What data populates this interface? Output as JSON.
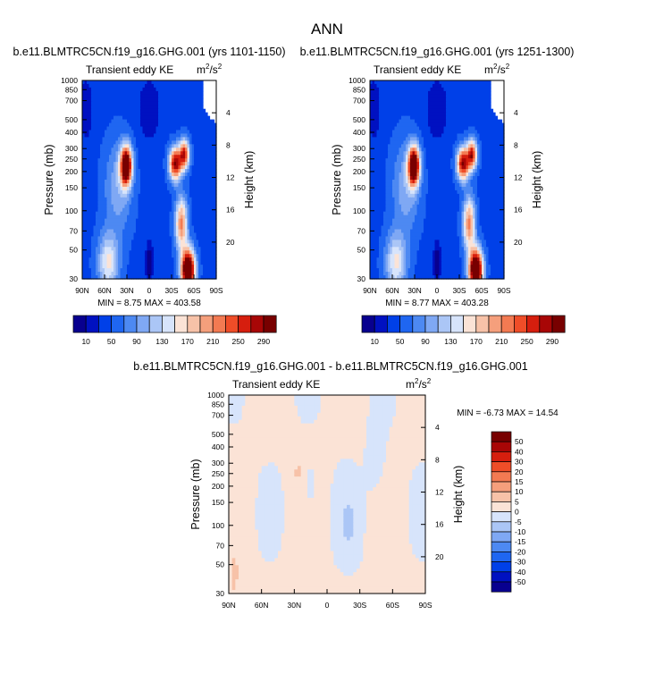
{
  "figure": {
    "title": "ANN"
  },
  "colors": {
    "seq": [
      "#08008f",
      "#0011c1",
      "#0040e8",
      "#1f66f1",
      "#4d89f2",
      "#7fa8f4",
      "#abc6f6",
      "#d7e4fb",
      "#fbe3d6",
      "#f7c2a8",
      "#f59f7c",
      "#f37a52",
      "#ef4d28",
      "#d61e0e",
      "#a80606",
      "#780000"
    ],
    "div": [
      "#08008f",
      "#0011c1",
      "#0040e8",
      "#1f66f1",
      "#4d89f2",
      "#7fa8f4",
      "#abc6f6",
      "#d7e4fb",
      "#fbe3d6",
      "#f7c2a8",
      "#f59f7c",
      "#f37a52",
      "#ef4d28",
      "#d61e0e",
      "#a80606",
      "#780000"
    ]
  },
  "chart_data": [
    {
      "type": "heatmap",
      "title": "b.e11.BLMTRC5CN.f19_g16.GHG.001 (yrs 1101-1150)",
      "subtitle_left": "Transient eddy KE",
      "units_label": "m²/s²",
      "units_base": "m",
      "units_mid": "/s",
      "units_sup": "2",
      "xlabel": "",
      "ylabel": "Pressure (mb)",
      "ylabel_right": "Height (km)",
      "xticks": [
        "90N",
        "60N",
        "30N",
        "0",
        "30S",
        "60S",
        "90S"
      ],
      "yticks": [
        "30",
        "50",
        "70",
        "100",
        "150",
        "200",
        "250",
        "300",
        "400",
        "500",
        "700",
        "850",
        "1000"
      ],
      "yticks_right": [
        "20",
        "16",
        "12",
        "8",
        "4"
      ],
      "stats": "MIN =  8.75   MAX = 403.58",
      "colorbar_labels": [
        "10",
        "50",
        "90",
        "130",
        "170",
        "210",
        "250",
        "290"
      ],
      "levels": [
        10,
        30,
        50,
        70,
        90,
        110,
        130,
        150,
        170,
        190,
        210,
        230,
        250,
        270,
        290
      ],
      "ylim": [
        1000,
        30
      ],
      "xlim": [
        90,
        -90
      ],
      "field": "ghg_early"
    },
    {
      "type": "heatmap",
      "title": "b.e11.BLMTRC5CN.f19_g16.GHG.001 (yrs 1251-1300)",
      "subtitle_left": "Transient eddy KE",
      "units_label": "m²/s²",
      "units_base": "m",
      "units_mid": "/s",
      "units_sup": "2",
      "xlabel": "",
      "ylabel": "Pressure (mb)",
      "ylabel_right": "Height (km)",
      "xticks": [
        "90N",
        "60N",
        "30N",
        "0",
        "30S",
        "60S",
        "90S"
      ],
      "yticks": [
        "30",
        "50",
        "70",
        "100",
        "150",
        "200",
        "250",
        "300",
        "400",
        "500",
        "700",
        "850",
        "1000"
      ],
      "yticks_right": [
        "20",
        "16",
        "12",
        "8",
        "4"
      ],
      "stats": "MIN =  8.77   MAX = 403.28",
      "colorbar_labels": [
        "10",
        "50",
        "90",
        "130",
        "170",
        "210",
        "250",
        "290"
      ],
      "levels": [
        10,
        30,
        50,
        70,
        90,
        110,
        130,
        150,
        170,
        190,
        210,
        230,
        250,
        270,
        290
      ],
      "ylim": [
        1000,
        30
      ],
      "xlim": [
        90,
        -90
      ],
      "field": "ghg_late"
    },
    {
      "type": "heatmap",
      "title": "b.e11.BLMTRC5CN.f19_g16.GHG.001 - b.e11.BLMTRC5CN.f19_g16.GHG.001",
      "subtitle_left": "Transient eddy KE",
      "units_label": "m²/s²",
      "units_base": "m",
      "units_mid": "/s",
      "units_sup": "2",
      "xlabel": "",
      "ylabel": "Pressure (mb)",
      "ylabel_right": "Height (km)",
      "xticks": [
        "90N",
        "60N",
        "30N",
        "0",
        "30S",
        "60S",
        "90S"
      ],
      "yticks": [
        "30",
        "50",
        "70",
        "100",
        "150",
        "200",
        "250",
        "300",
        "400",
        "500",
        "700",
        "850",
        "1000"
      ],
      "yticks_right": [
        "20",
        "16",
        "12",
        "8",
        "4"
      ],
      "stats": "MIN = -6.73   MAX = 14.54",
      "colorbar_labels": [
        "50",
        "40",
        "30",
        "20",
        "15",
        "10",
        "5",
        "0",
        "-5",
        "-10",
        "-15",
        "-20",
        "-30",
        "-40",
        "-50"
      ],
      "levels": [
        -50,
        -40,
        -30,
        -20,
        -15,
        -10,
        -5,
        0,
        5,
        10,
        15,
        20,
        30,
        40,
        50
      ],
      "ylim": [
        1000,
        30
      ],
      "xlim": [
        90,
        -90
      ],
      "field": "difference"
    }
  ]
}
